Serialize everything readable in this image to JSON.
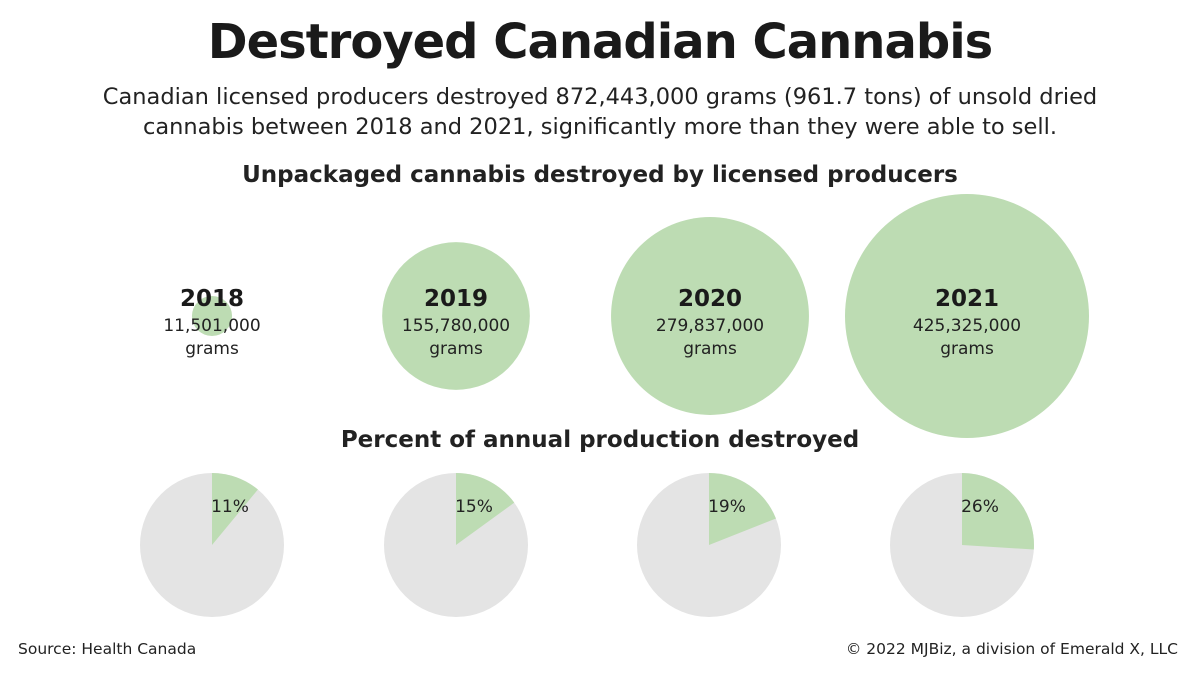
{
  "title": "Destroyed Canadian Cannabis",
  "subtitle_line1": "Canadian licensed producers destroyed 872,443,000 grams (961.7 tons) of unsold dried",
  "subtitle_line2": "cannabis between 2018 and 2021, significantly more than they were able to sell.",
  "source": "Source: Health Canada",
  "copyright": "© 2022 MJBiz, a division of Emerald X, LLC",
  "colors": {
    "green": "#bddcb3",
    "gray": "#e4e4e4"
  },
  "chart_data": [
    {
      "type": "bubble",
      "title": "Unpackaged cannabis destroyed by licensed producers",
      "categories": [
        "2018",
        "2019",
        "2020",
        "2021"
      ],
      "values": [
        11501000,
        155780000,
        279837000,
        425325000
      ],
      "value_labels": [
        "11,501,000",
        "155,780,000",
        "279,837,000",
        "425,325,000"
      ],
      "unit": "grams"
    },
    {
      "type": "pie",
      "title": "Percent of annual production destroyed",
      "categories": [
        "2018",
        "2019",
        "2020",
        "2021"
      ],
      "values": [
        11,
        15,
        19,
        26
      ],
      "value_labels": [
        "11%",
        "15%",
        "19%",
        "26%"
      ]
    }
  ]
}
